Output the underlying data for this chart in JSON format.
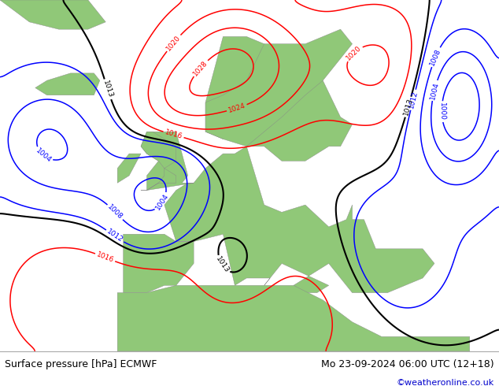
{
  "title_left": "Surface pressure [hPa] ECMWF",
  "title_right": "Mo 23-09-2024 06:00 UTC (12+18)",
  "credit": "©weatheronline.co.uk",
  "credit_color": "#0000cc",
  "land_color": "#90c878",
  "sea_color": "#d8e8d8",
  "footer_bg": "#ffffff",
  "footer_text_color": "#000000",
  "fig_width": 6.34,
  "fig_height": 4.9,
  "dpi": 100
}
